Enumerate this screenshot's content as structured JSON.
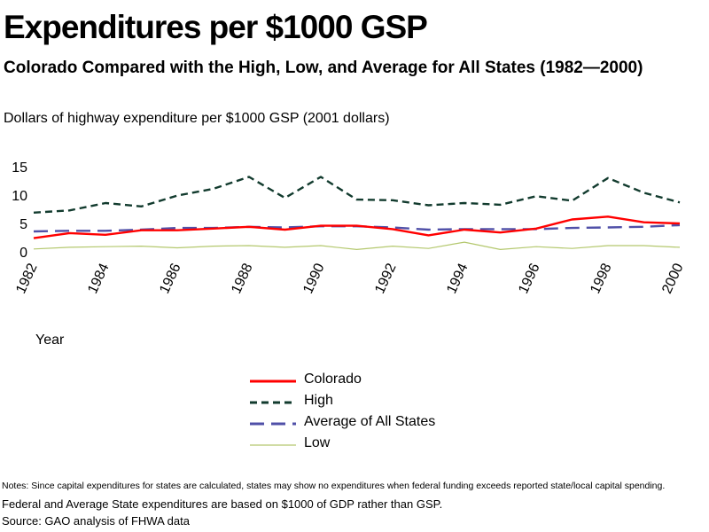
{
  "chart_data": {
    "type": "line",
    "title": "Expenditures per $1000 GSP",
    "subtitle": "Colorado Compared with the High, Low, and Average for All States (1982—2000)",
    "ylabel": "Dollars of highway expenditure per $1000 GSP  (2001 dollars)",
    "xlabel": "Year",
    "ylim": [
      0,
      15
    ],
    "yticks": [
      "0",
      "5",
      "10",
      "15"
    ],
    "x": [
      1982,
      1983,
      1984,
      1985,
      1986,
      1987,
      1988,
      1989,
      1990,
      1991,
      1992,
      1993,
      1994,
      1995,
      1996,
      1997,
      1998,
      1999,
      2000
    ],
    "xticks": [
      "1982",
      "1984",
      "1986",
      "1988",
      "1990",
      "1992",
      "1994",
      "1996",
      "1998",
      "2000"
    ],
    "series": [
      {
        "name": "Colorado",
        "color": "#ff0000",
        "style": "solid",
        "values": [
          2.4,
          3.3,
          3.0,
          3.8,
          3.8,
          4.1,
          4.4,
          3.9,
          4.6,
          4.6,
          4.0,
          2.9,
          3.9,
          3.4,
          4.1,
          5.7,
          6.2,
          5.2,
          5.0
        ]
      },
      {
        "name": "High",
        "color": "#123b2e",
        "style": "dashed",
        "values": [
          6.9,
          7.3,
          8.6,
          8.0,
          9.9,
          11.1,
          13.2,
          9.5,
          13.2,
          9.2,
          9.1,
          8.2,
          8.6,
          8.3,
          9.8,
          9.0,
          13.0,
          10.4,
          8.7
        ]
      },
      {
        "name": "Average of All States",
        "color": "#5050a8",
        "style": "longdash",
        "values": [
          3.6,
          3.7,
          3.7,
          3.9,
          4.2,
          4.2,
          4.4,
          4.3,
          4.5,
          4.5,
          4.3,
          3.9,
          4.0,
          4.0,
          4.0,
          4.2,
          4.3,
          4.4,
          4.7
        ]
      },
      {
        "name": "Low",
        "color": "#b4c86e",
        "style": "solid",
        "values": [
          0.5,
          0.8,
          0.9,
          1.0,
          0.7,
          1.0,
          1.1,
          0.8,
          1.1,
          0.4,
          1.0,
          0.6,
          1.7,
          0.4,
          0.9,
          0.6,
          1.1,
          1.1,
          0.8
        ]
      }
    ],
    "legend_placement": "bottom-center"
  },
  "notes": {
    "line1": "Notes: Since capital expenditures for states are calculated, states may show no expenditures when federal funding exceeds reported state/local capital spending.",
    "line2": "Federal and Average State expenditures are based on $1000 of GDP rather than GSP.",
    "source": "Source: GAO  analysis of FHWA data"
  }
}
